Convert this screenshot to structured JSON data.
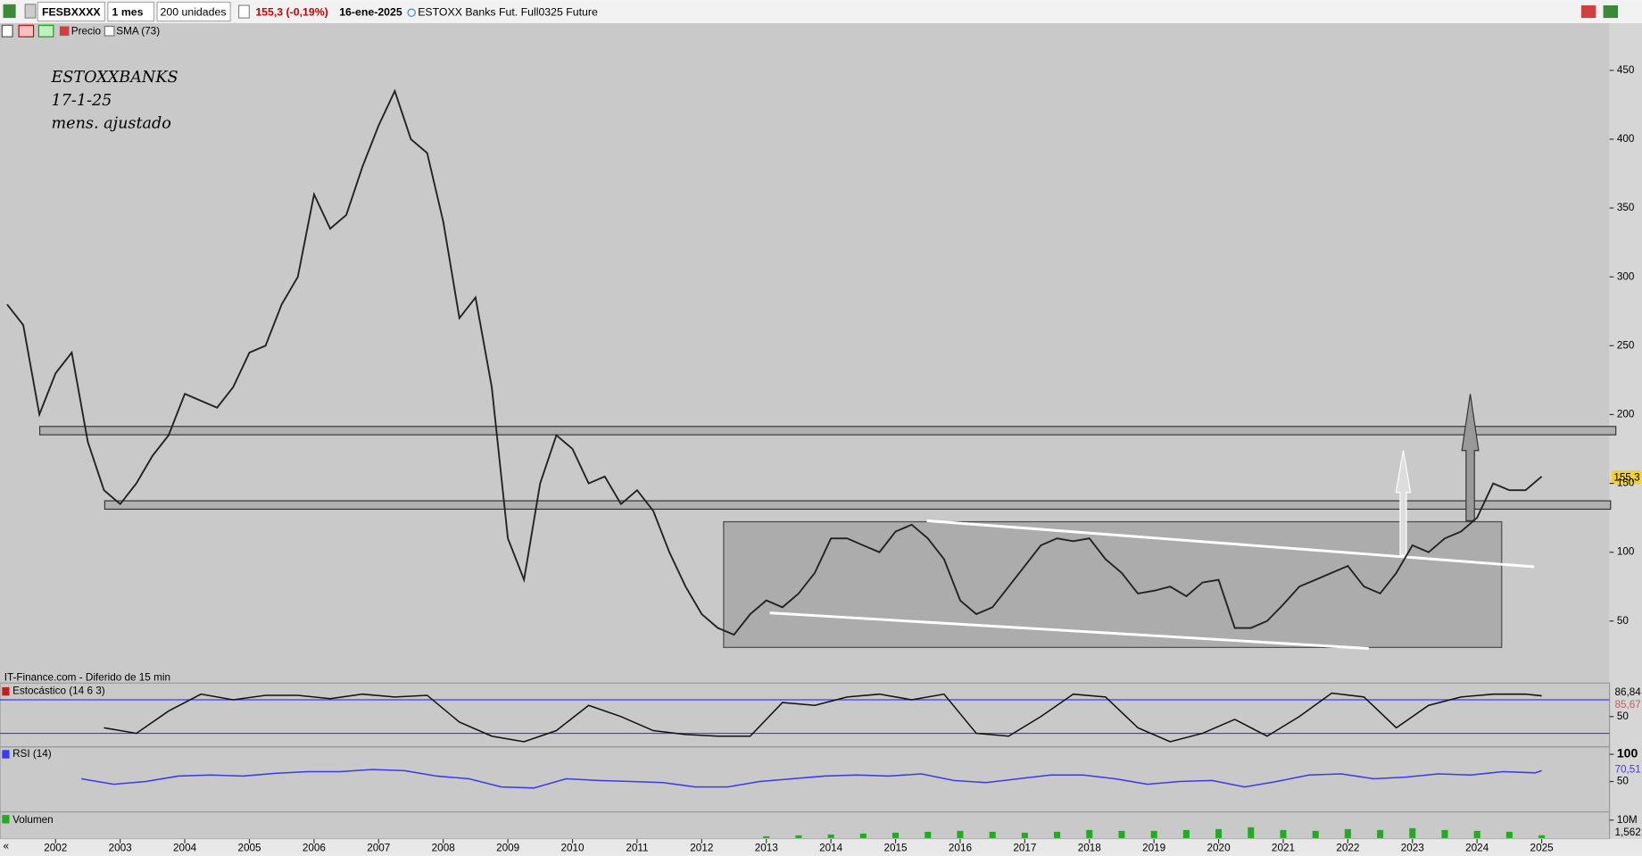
{
  "toolbar": {
    "symbol": "FESBXXXX",
    "period": "1 mes",
    "units": "200 unidades",
    "change": "155,3 (-0,19%)",
    "date": "16-ene-2025",
    "instrument": "ESTOXX Banks Fut. Full0325 Future"
  },
  "legend": {
    "price": "Precio",
    "sma": "SMA (73)"
  },
  "annotation": [
    "ESTOXXBANKS",
    "17-1-25",
    "mens. ajustado"
  ],
  "source": "IT-Finance.com - Diferido de 15 min",
  "price_tag": "155,3",
  "chart_data": [
    {
      "type": "line",
      "title": "Precio",
      "color": "#222222",
      "x": [
        2001.25,
        2001.5,
        2001.75,
        2002,
        2002.25,
        2002.5,
        2002.75,
        2003,
        2003.25,
        2003.5,
        2003.75,
        2004,
        2004.25,
        2004.5,
        2004.75,
        2005,
        2005.25,
        2005.5,
        2005.75,
        2006,
        2006.25,
        2006.5,
        2006.75,
        2007,
        2007.25,
        2007.5,
        2007.75,
        2008,
        2008.25,
        2008.5,
        2008.75,
        2009,
        2009.25,
        2009.5,
        2009.75,
        2010,
        2010.25,
        2010.5,
        2010.75,
        2011,
        2011.25,
        2011.5,
        2011.75,
        2012,
        2012.25,
        2012.5,
        2012.75,
        2013,
        2013.25,
        2013.5,
        2013.75,
        2014,
        2014.25,
        2014.5,
        2014.75,
        2015,
        2015.25,
        2015.5,
        2015.75,
        2016,
        2016.25,
        2016.5,
        2016.75,
        2017,
        2017.25,
        2017.5,
        2017.75,
        2018,
        2018.25,
        2018.5,
        2018.75,
        2019,
        2019.25,
        2019.5,
        2019.75,
        2020,
        2020.25,
        2020.5,
        2020.75,
        2021,
        2021.25,
        2021.5,
        2021.75,
        2022,
        2022.25,
        2022.5,
        2022.75,
        2023,
        2023.25,
        2023.5,
        2023.75,
        2024,
        2024.25,
        2024.5,
        2024.75,
        2025
      ],
      "values": [
        280,
        265,
        200,
        230,
        245,
        180,
        145,
        135,
        150,
        170,
        185,
        215,
        210,
        205,
        220,
        245,
        250,
        280,
        300,
        360,
        335,
        345,
        380,
        410,
        435,
        400,
        390,
        340,
        270,
        285,
        220,
        110,
        80,
        150,
        185,
        175,
        150,
        155,
        135,
        145,
        130,
        100,
        75,
        55,
        45,
        40,
        55,
        65,
        60,
        70,
        85,
        110,
        110,
        105,
        100,
        115,
        120,
        110,
        95,
        65,
        55,
        60,
        75,
        90,
        105,
        110,
        108,
        110,
        95,
        85,
        70,
        72,
        75,
        68,
        78,
        80,
        45,
        45,
        50,
        62,
        75,
        80,
        85,
        90,
        75,
        70,
        85,
        105,
        100,
        110,
        115,
        125,
        150,
        145,
        145,
        155
      ],
      "xlim": [
        2001.14,
        2026.05
      ],
      "xticks": [
        2002,
        2003,
        2004,
        2005,
        2006,
        2007,
        2008,
        2009,
        2010,
        2011,
        2012,
        2013,
        2014,
        2015,
        2016,
        2017,
        2018,
        2019,
        2020,
        2021,
        2022,
        2023,
        2024,
        2025
      ],
      "ylim": [
        8,
        482
      ],
      "yticks": [
        50,
        100,
        150,
        200,
        250,
        300,
        350,
        400,
        450
      ]
    },
    {
      "type": "line",
      "title": "Estocástico (14 6 3)",
      "color": "#111111",
      "x": [
        2002.75,
        2003.25,
        2003.75,
        2004.25,
        2004.75,
        2005.25,
        2005.75,
        2006.25,
        2006.75,
        2007.25,
        2007.75,
        2008.25,
        2008.75,
        2009.25,
        2009.75,
        2010.25,
        2010.75,
        2011.25,
        2011.75,
        2012.25,
        2012.75,
        2013.25,
        2013.75,
        2014.25,
        2014.75,
        2015.25,
        2015.75,
        2016.25,
        2016.75,
        2017.25,
        2017.75,
        2018.25,
        2018.75,
        2019.25,
        2019.75,
        2020.25,
        2020.75,
        2021.25,
        2021.75,
        2022.25,
        2022.75,
        2023.25,
        2023.75,
        2024.25,
        2024.75,
        2025
      ],
      "values": [
        30,
        20,
        60,
        90,
        80,
        88,
        88,
        82,
        90,
        85,
        88,
        40,
        15,
        5,
        25,
        70,
        50,
        25,
        18,
        15,
        15,
        75,
        70,
        85,
        90,
        80,
        90,
        20,
        15,
        50,
        90,
        85,
        30,
        5,
        20,
        45,
        15,
        50,
        92,
        85,
        30,
        70,
        85,
        90,
        90,
        87
      ],
      "levels": [
        20,
        80
      ],
      "level_color": "#3a3aff",
      "last_labels": [
        "86,84",
        "85,67"
      ],
      "xlim": [
        2001.14,
        2026.05
      ],
      "ylim": [
        0,
        100
      ],
      "yticks": [
        50
      ]
    },
    {
      "type": "line",
      "title": "RSI (14)",
      "color": "#3a3af0",
      "x": [
        2002.4,
        2002.9,
        2003.4,
        2003.9,
        2004.4,
        2004.9,
        2005.4,
        2005.9,
        2006.4,
        2006.9,
        2007.4,
        2007.9,
        2008.4,
        2008.9,
        2009.4,
        2009.9,
        2010.4,
        2010.9,
        2011.4,
        2011.9,
        2012.4,
        2012.9,
        2013.4,
        2013.9,
        2014.4,
        2014.9,
        2015.4,
        2015.9,
        2016.4,
        2016.9,
        2017.4,
        2017.9,
        2018.4,
        2018.9,
        2019.4,
        2019.9,
        2020.4,
        2020.9,
        2021.4,
        2021.9,
        2022.4,
        2022.9,
        2023.4,
        2023.9,
        2024.4,
        2024.9,
        2025
      ],
      "values": [
        55,
        45,
        50,
        60,
        62,
        60,
        65,
        68,
        68,
        72,
        70,
        60,
        55,
        40,
        38,
        55,
        52,
        50,
        48,
        40,
        40,
        50,
        55,
        60,
        62,
        60,
        64,
        52,
        48,
        55,
        62,
        62,
        55,
        45,
        50,
        52,
        40,
        50,
        62,
        64,
        55,
        58,
        64,
        62,
        68,
        66,
        70
      ],
      "last_labels": [
        "70,51"
      ],
      "xlim": [
        2001.14,
        2026.05
      ],
      "ylim": [
        0,
        100
      ],
      "yticks": [
        50,
        100
      ]
    },
    {
      "type": "bar",
      "title": "Volumen",
      "color": "#22aa22",
      "x": [
        2013,
        2013.5,
        2014,
        2014.5,
        2015,
        2015.5,
        2016,
        2016.5,
        2017,
        2017.5,
        2018,
        2018.5,
        2019,
        2019.5,
        2020,
        2020.5,
        2021,
        2021.5,
        2022,
        2022.5,
        2023,
        2023.5,
        2024,
        2024.5,
        2025
      ],
      "values": [
        1000000,
        1500000,
        2000000,
        2500000,
        3000000,
        3500000,
        4000000,
        3500000,
        3000000,
        3500000,
        4500000,
        4000000,
        4000000,
        4500000,
        5000000,
        6000000,
        4500000,
        4000000,
        5000000,
        4500000,
        5500000,
        4500000,
        4000000,
        3500000,
        1562000
      ],
      "last_labels": [
        "1,562"
      ],
      "xlim": [
        2001.14,
        2026.05
      ],
      "ylim": [
        0,
        14000000
      ],
      "yticks": [
        {
          "value": 10000000,
          "label": "10M"
        }
      ]
    }
  ]
}
